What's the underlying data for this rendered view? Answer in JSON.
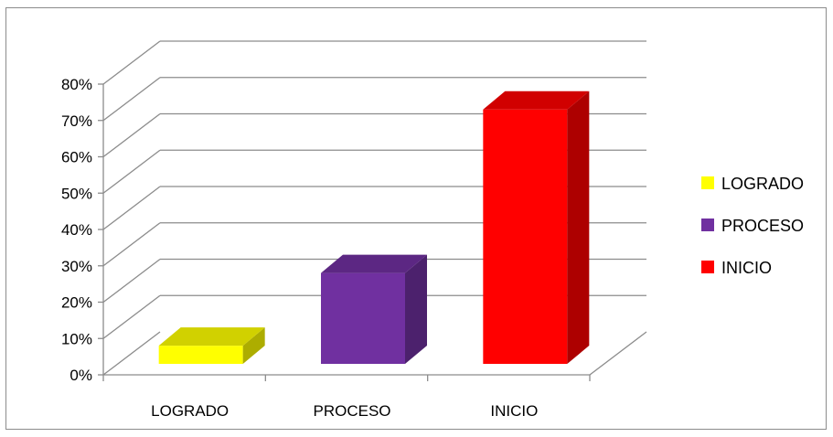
{
  "chart_data": {
    "type": "bar",
    "categories": [
      "LOGRADO",
      "PROCESO",
      "INICIO"
    ],
    "values": [
      5,
      25,
      70
    ],
    "value_unit": "%",
    "ylim": [
      0,
      80
    ],
    "y_ticks": [
      "0%",
      "10%",
      "20%",
      "30%",
      "40%",
      "50%",
      "60%",
      "70%",
      "80%"
    ],
    "colors": [
      "#ffff00",
      "#7030a0",
      "#ff0000"
    ],
    "grid": true,
    "three_d": true,
    "legend": {
      "placement": "right",
      "entries": [
        {
          "label": "LOGRADO",
          "color": "#ffff00"
        },
        {
          "label": "PROCESO",
          "color": "#7030a0"
        },
        {
          "label": "INICIO",
          "color": "#ff0000"
        }
      ]
    }
  }
}
